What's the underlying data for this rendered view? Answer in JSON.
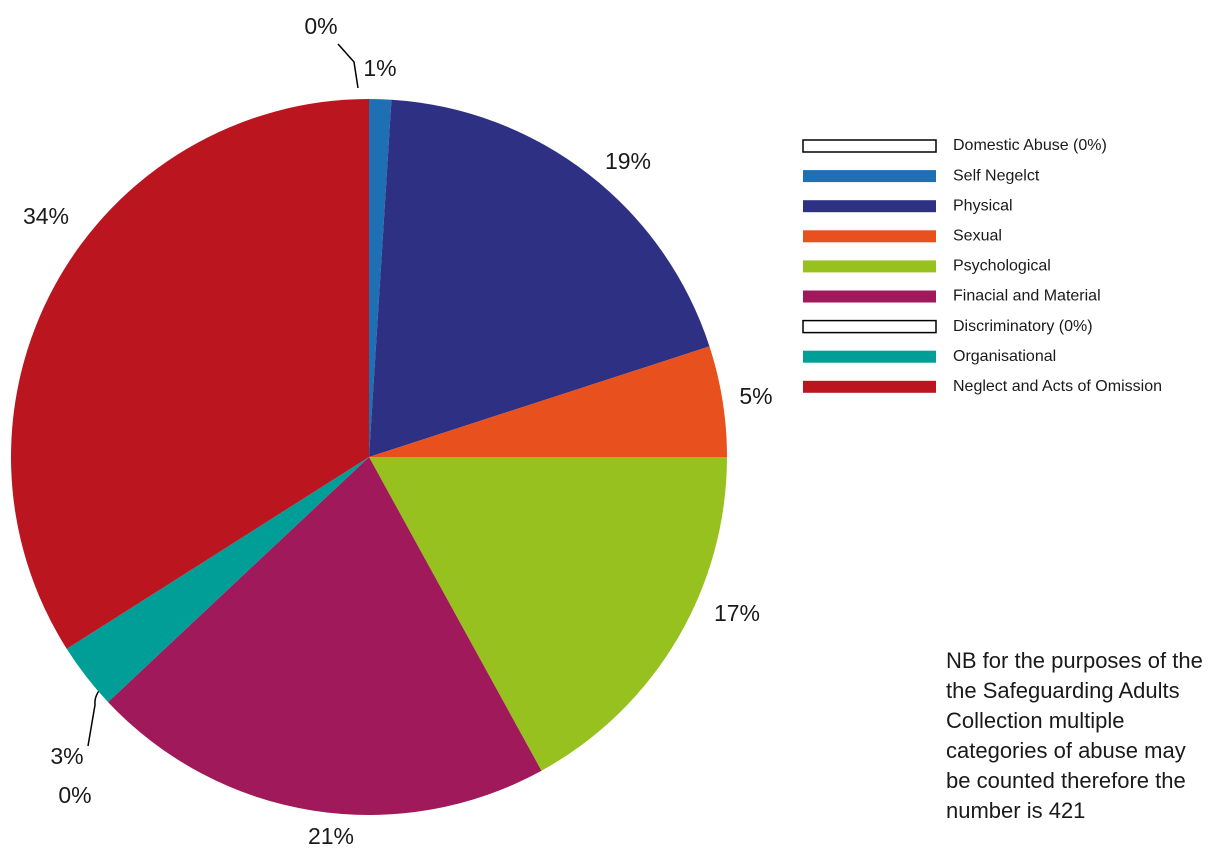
{
  "chart_data": {
    "type": "pie",
    "categories": [
      "Domestic Abuse (0%)",
      "Self Negelct",
      "Physical",
      "Sexual",
      "Psychological",
      "Finacial and Material",
      "Discriminatory (0%)",
      "Organisational",
      "Neglect and Acts of Omission"
    ],
    "values": [
      0,
      1,
      19,
      5,
      17,
      21,
      0,
      3,
      34
    ],
    "value_labels": [
      "0%",
      "1%",
      "19%",
      "5%",
      "17%",
      "21%",
      "0%",
      "3%",
      "34%"
    ],
    "colors": [
      "#ffffff",
      "#1f6fb5",
      "#2e3183",
      "#e8501e",
      "#97c11f",
      "#a0195a",
      "#ffffff",
      "#009e96",
      "#bb1620"
    ],
    "legend": "right",
    "note": [
      "NB for the purposes of the",
      "the Safeguarding Adults",
      "Collection multiple",
      "categories of abuse may",
      "be counted therefore the",
      "number is 421"
    ]
  }
}
